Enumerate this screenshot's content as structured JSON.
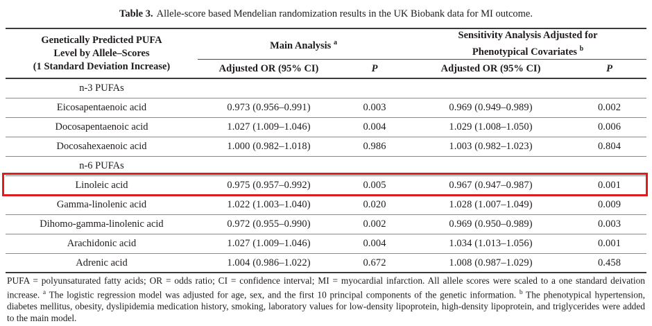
{
  "title": {
    "prefix": "Table 3.",
    "text": "Allele-score based Mendelian randomization results in the UK Biobank data for MI outcome."
  },
  "highlight": {
    "color": "#e01b1b",
    "row_label": "Linoleic acid"
  },
  "table": {
    "stub_header": {
      "line1": "Genetically Predicted PUFA",
      "line2": "Level by Allele–Scores",
      "line3": "(1 Standard Deviation Increase)"
    },
    "groups": {
      "main": {
        "label": "Main Analysis",
        "sup": "a"
      },
      "sensitivity": {
        "line1": "Sensitivity Analysis Adjusted for",
        "line2": "Phenotypical Covariates",
        "sup": "b"
      }
    },
    "subheaders": {
      "or_label": "Adjusted OR (95% CI)",
      "p_label": "P"
    },
    "rows": [
      {
        "type": "section",
        "label": "n-3 PUFAs"
      },
      {
        "type": "data",
        "label": "Eicosapentaenoic acid",
        "main_or": "0.973 (0.956–0.991)",
        "main_p": "0.003",
        "sens_or": "0.969 (0.949–0.989)",
        "sens_p": "0.002"
      },
      {
        "type": "data",
        "label": "Docosapentaenoic acid",
        "main_or": "1.027 (1.009–1.046)",
        "main_p": "0.004",
        "sens_or": "1.029 (1.008–1.050)",
        "sens_p": "0.006"
      },
      {
        "type": "data",
        "label": "Docosahexaenoic acid",
        "main_or": "1.000 (0.982–1.018)",
        "main_p": "0.986",
        "sens_or": "1.003 (0.982–1.023)",
        "sens_p": "0.804"
      },
      {
        "type": "section",
        "label": "n-6 PUFAs"
      },
      {
        "type": "data",
        "label": "Linoleic acid",
        "main_or": "0.975 (0.957–0.992)",
        "main_p": "0.005",
        "sens_or": "0.967 (0.947–0.987)",
        "sens_p": "0.001",
        "highlighted": true
      },
      {
        "type": "data",
        "label": "Gamma-linolenic acid",
        "main_or": "1.022 (1.003–1.040)",
        "main_p": "0.020",
        "sens_or": "1.028 (1.007–1.049)",
        "sens_p": "0.009"
      },
      {
        "type": "data",
        "label": "Dihomo-gamma-linolenic acid",
        "main_or": "0.972 (0.955–0.990)",
        "main_p": "0.002",
        "sens_or": "0.969 (0.950–0.989)",
        "sens_p": "0.003"
      },
      {
        "type": "data",
        "label": "Arachidonic acid",
        "main_or": "1.027 (1.009–1.046)",
        "main_p": "0.004",
        "sens_or": "1.034 (1.013–1.056)",
        "sens_p": "0.001"
      },
      {
        "type": "data",
        "label": "Adrenic acid",
        "main_or": "1.004 (0.986–1.022)",
        "main_p": "0.672",
        "sens_or": "1.008 (0.987–1.029)",
        "sens_p": "0.458"
      }
    ]
  },
  "footnote": {
    "part1": "PUFA = polyunsaturated fatty acids; OR = odds ratio; CI = confidence interval; MI = myocardial infarction.  All allele scores were scaled to a one standard deivation increase. ",
    "sup1": "a",
    "part2": " The logistic regression model was adjusted for age, sex, and the first 10 principal components of the genetic information. ",
    "sup2": "b",
    "part3": " The phenotypical hypertension, diabetes mellitus, obesity, dyslipidemia medication history, smoking, laboratory values for low-density lipoprotein, high-density lipoprotein, and triglycerides were added to the main model."
  }
}
